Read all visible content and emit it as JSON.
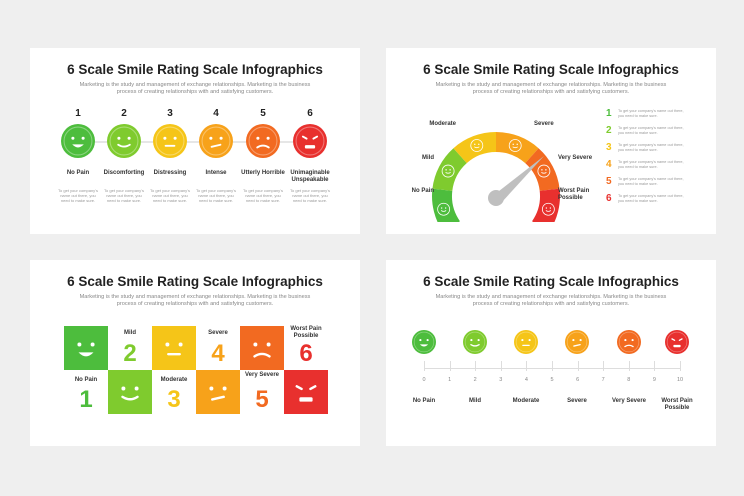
{
  "title": "6 Scale Smile Rating Scale Infographics",
  "subtitle": "Marketing is the study and management of exchange relationships. Marketing is the business process of creating relationships with and satisfying customers.",
  "desc_text": "To get your company's name out there, you need to make sure.",
  "colors": [
    "#4dbd3d",
    "#7fcb2e",
    "#f5c518",
    "#f7a21a",
    "#f26a21",
    "#e8302e"
  ],
  "s1": {
    "numbers": [
      "1",
      "2",
      "3",
      "4",
      "5",
      "6"
    ],
    "labels": [
      "No Pain",
      "Discomforting",
      "Distressing",
      "Intense",
      "Utterly Horrible",
      "Unimaginable Unspeakable"
    ]
  },
  "s2": {
    "labels": [
      "No Pain",
      "Mild",
      "Moderate",
      "Severe",
      "Very Severe",
      "Worst Pain Possible"
    ],
    "legend": [
      "1",
      "2",
      "3",
      "4",
      "5",
      "6"
    ]
  },
  "s3": {
    "top_labels": [
      "Mild",
      "Severe",
      "Worst Pain Possible"
    ],
    "top_numbers": [
      "2",
      "4",
      "6"
    ],
    "bottom_labels": [
      "No Pain",
      "Moderate",
      "Very Severe"
    ],
    "bottom_numbers": [
      "1",
      "3",
      "5"
    ]
  },
  "s4": {
    "ticks": [
      "0",
      "1",
      "2",
      "3",
      "4",
      "5",
      "6",
      "7",
      "8",
      "9",
      "10"
    ],
    "labels": [
      "No Pain",
      "Mild",
      "Moderate",
      "Severe",
      "Very Severe",
      "Worst Pain Possible"
    ]
  }
}
